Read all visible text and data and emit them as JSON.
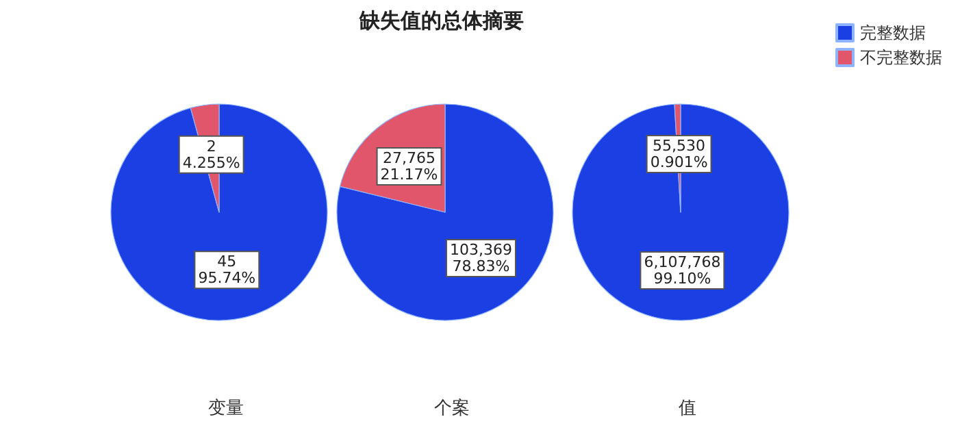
{
  "chart_data": [
    {
      "type": "pie",
      "xlabel": "变量",
      "categories": [
        null,
        null
      ],
      "values": [
        45,
        2
      ],
      "colors": [
        "#1c3fe3",
        "#e2566b"
      ],
      "value_labels": [
        "45\n95.74%",
        "2\n4.255%"
      ],
      "legend": false
    },
    {
      "type": "pie",
      "title": "缺失值的总体摘要",
      "xlabel": "个案",
      "categories": [
        null,
        null
      ],
      "values": [
        103369,
        27765
      ],
      "colors": [
        "#1c3fe3",
        "#e2566b"
      ],
      "value_labels": [
        "103,369\n78.83%",
        "27,765\n21.17%"
      ],
      "legend": false
    },
    {
      "type": "pie",
      "xlabel": "值",
      "categories": [
        "完整数据",
        "不完整数据"
      ],
      "values": [
        6107768,
        55530
      ],
      "colors": [
        "#1c3fe3",
        "#e2566b"
      ],
      "value_labels": [
        "6,107,768\n99.10%",
        "55,530\n0.901%"
      ],
      "legend": "top right"
    }
  ]
}
